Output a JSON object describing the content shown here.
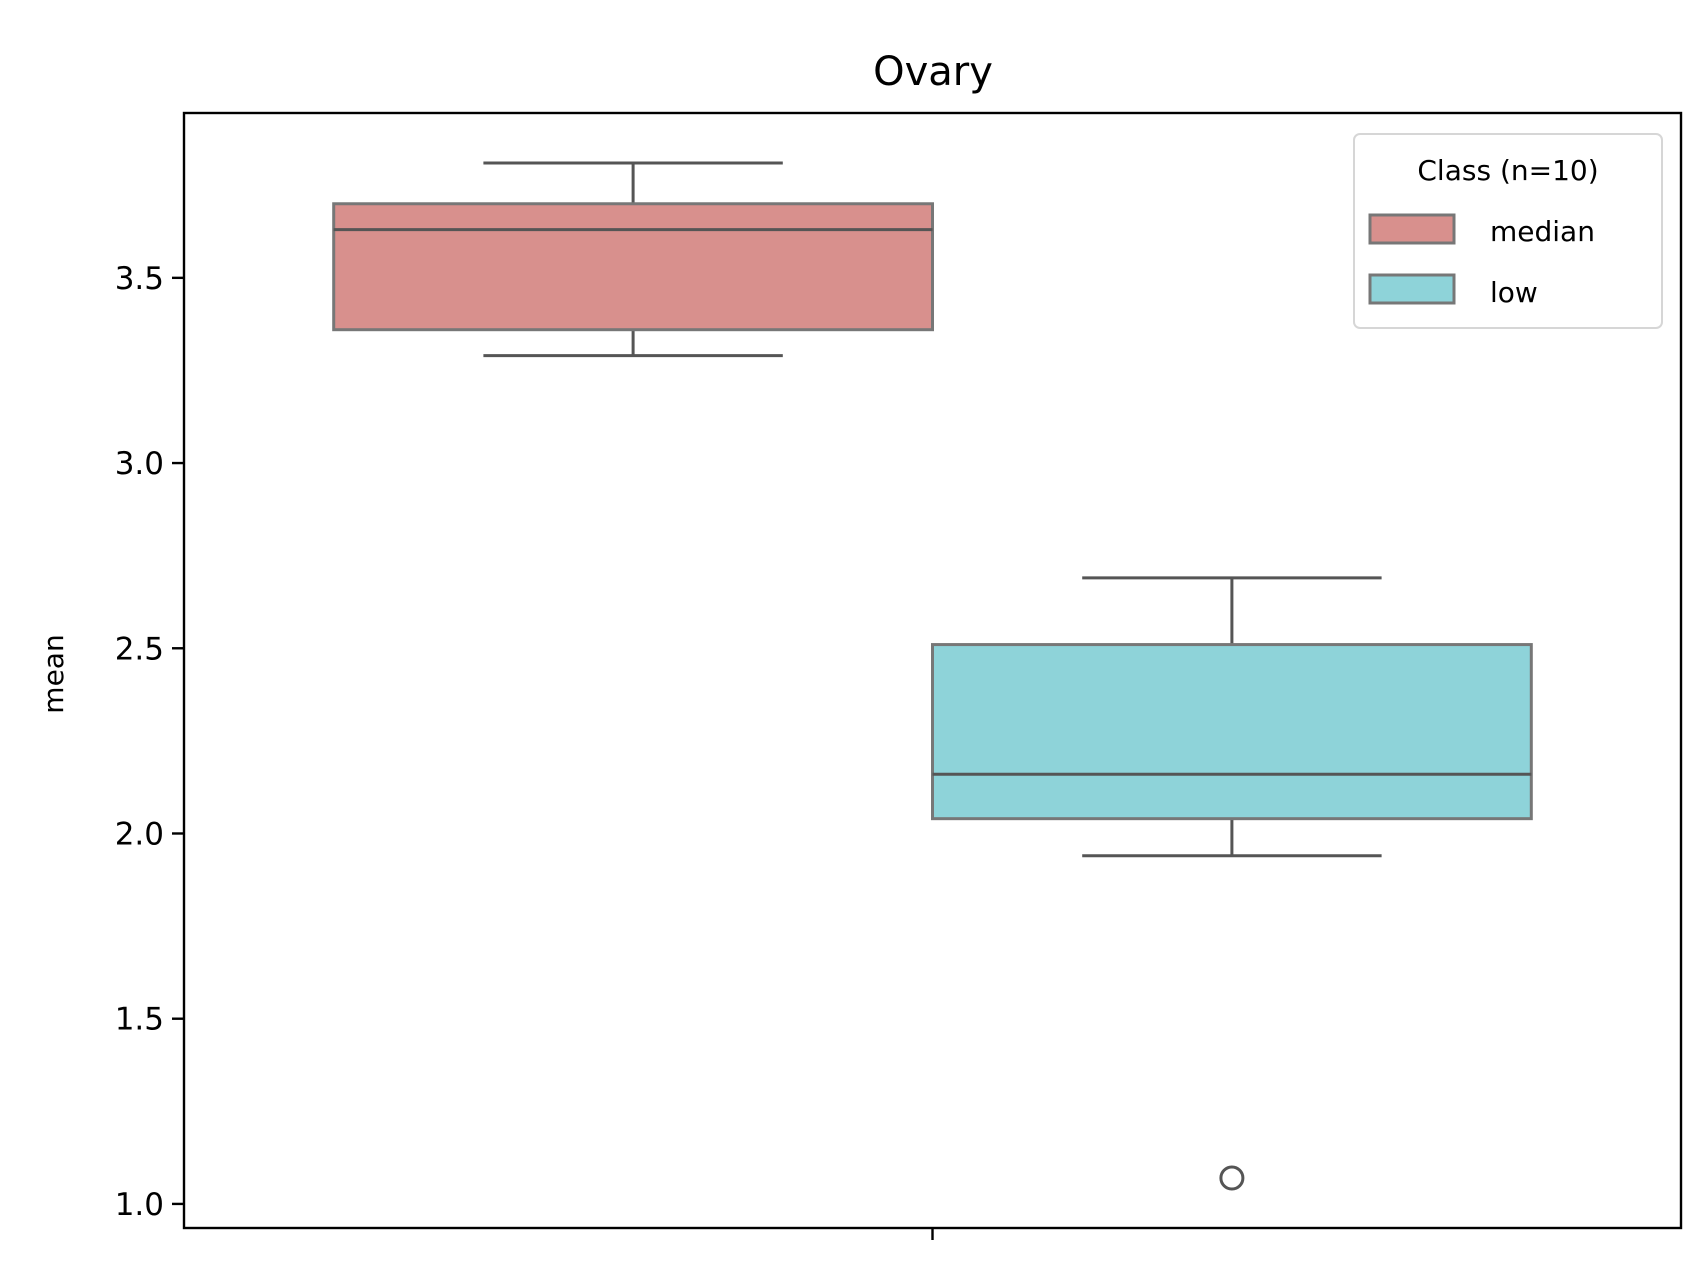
{
  "chart_data": {
    "type": "box",
    "title": "Ovary",
    "xlabel": "",
    "ylabel": "mean",
    "ylim": [
      0.935,
      3.945
    ],
    "yticks": [
      1.0,
      1.5,
      2.0,
      2.5,
      3.0,
      3.5
    ],
    "ytick_labels": [
      "1.0",
      "1.5",
      "2.0",
      "2.5",
      "3.0",
      "3.5"
    ],
    "grid": false,
    "legend": {
      "title": "Class (n=10)",
      "placement": "top-right",
      "entries": [
        "median",
        "low"
      ]
    },
    "series": [
      {
        "name": "median",
        "color": "#d8908d",
        "whisker_low": 3.29,
        "q1": 3.36,
        "median": 3.63,
        "q3": 3.7,
        "whisker_high": 3.81,
        "outliers": []
      },
      {
        "name": "low",
        "color": "#8ed3d9",
        "whisker_low": 1.94,
        "q1": 2.04,
        "median": 2.16,
        "q3": 2.51,
        "whisker_high": 2.69,
        "outliers": [
          1.07
        ]
      }
    ]
  }
}
